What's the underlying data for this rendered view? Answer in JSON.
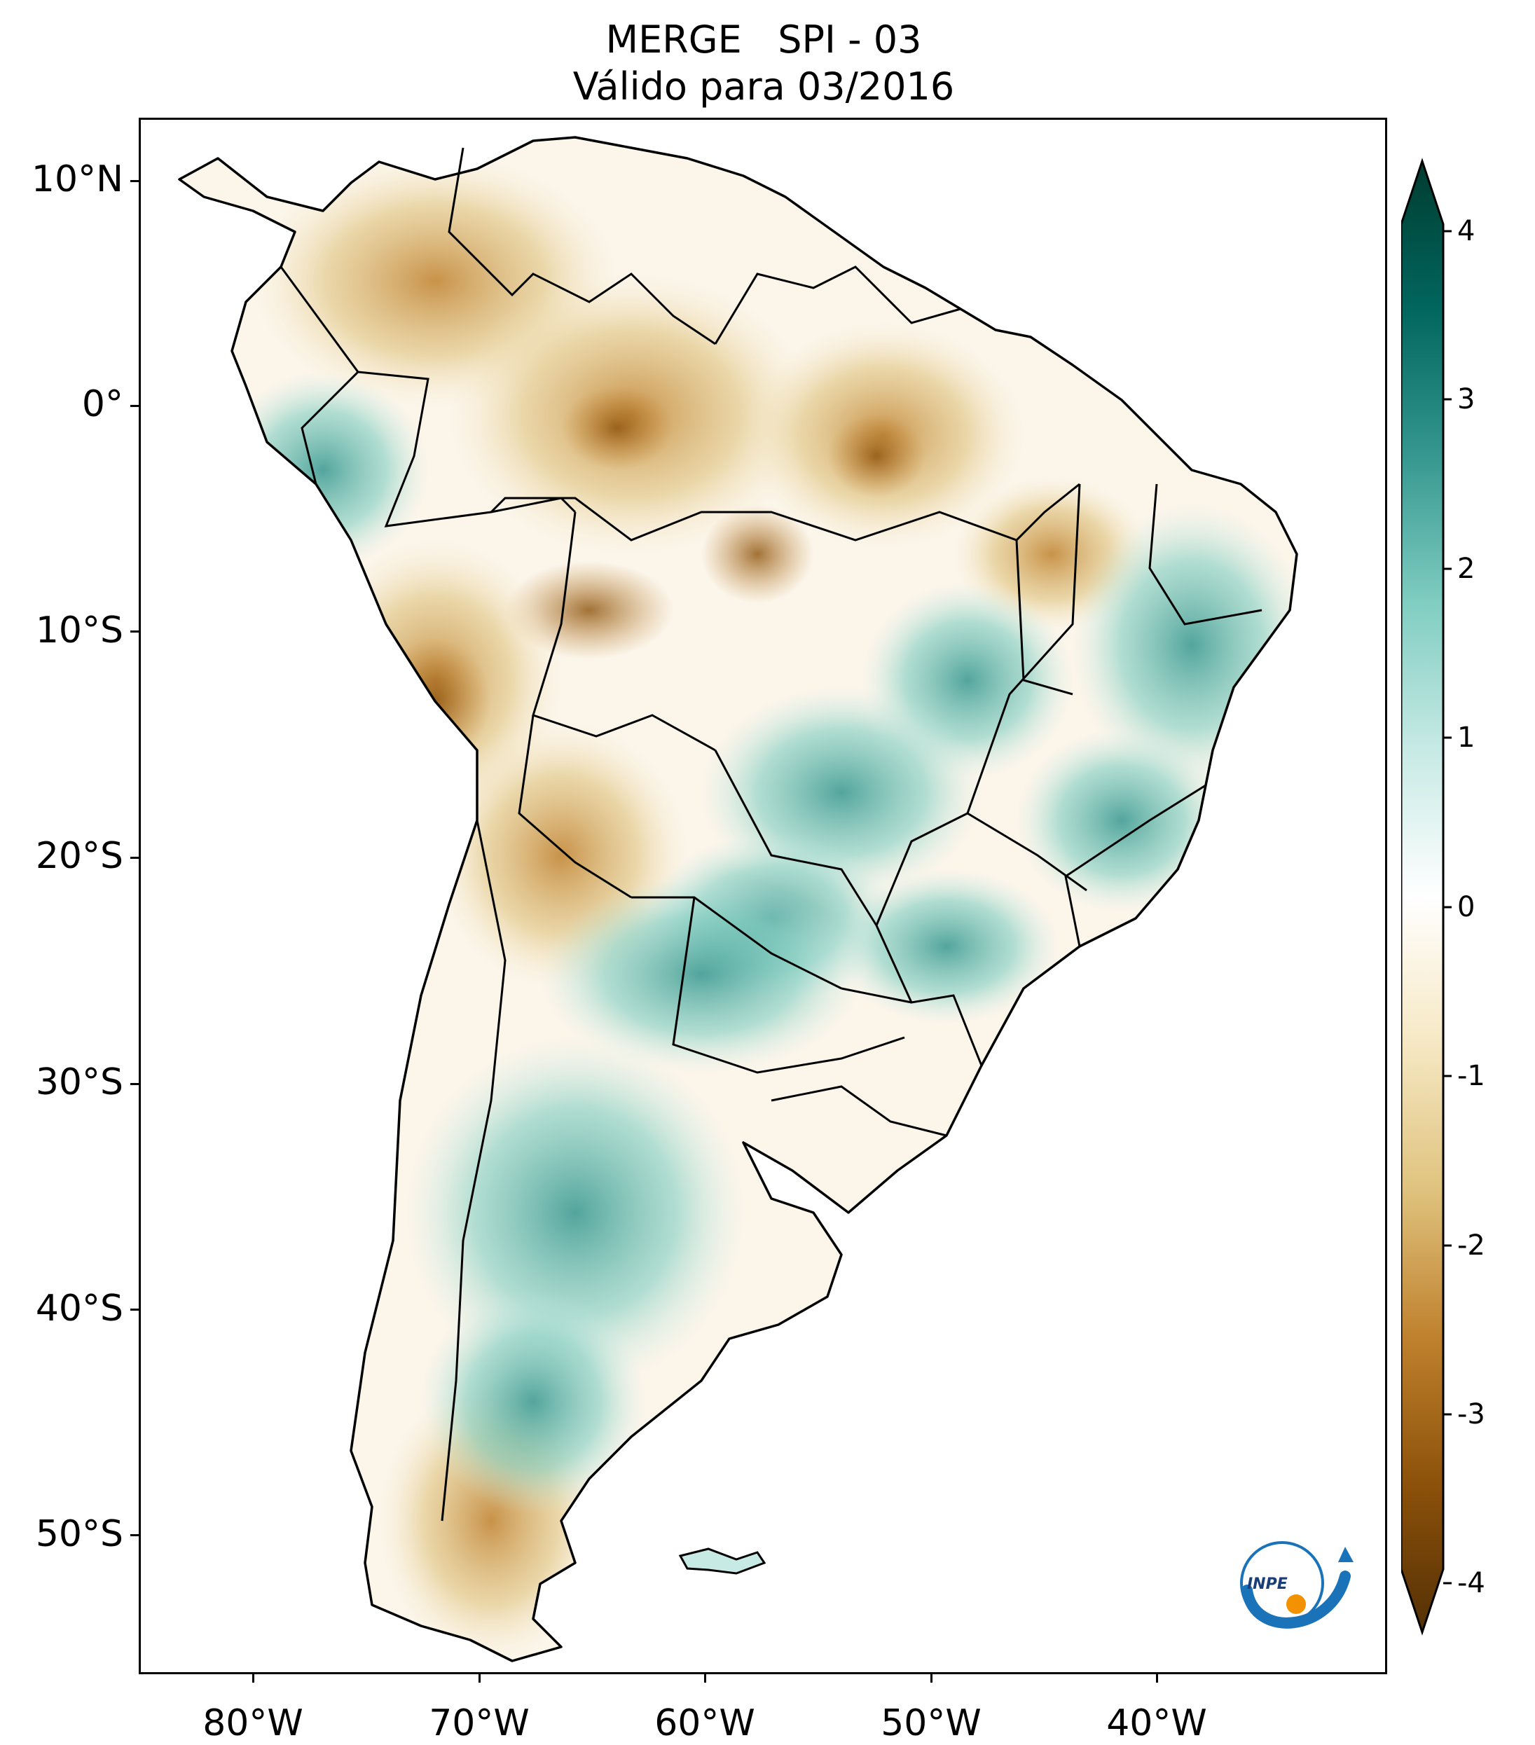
{
  "title": {
    "line1": "MERGE   SPI - 03",
    "line2": "Válido para 03/2016"
  },
  "axes": {
    "lat_labels": [
      "10°N",
      "0°",
      "10°S",
      "20°S",
      "30°S",
      "40°S",
      "50°S"
    ],
    "lon_labels": [
      "80°W",
      "70°W",
      "60°W",
      "50°W",
      "40°W"
    ]
  },
  "colorbar": {
    "labels": [
      "4",
      "3",
      "2",
      "1",
      "0",
      "-1",
      "-2",
      "-3",
      "-4"
    ],
    "min": -4,
    "max": 4,
    "extend": "both",
    "colors": {
      "dry_extreme": "#543005",
      "dry_strong": "#8c510a",
      "dry_moderate": "#bf812d",
      "dry_mild": "#dfc27d",
      "dry_light": "#f6e8c3",
      "neutral": "#ffffff",
      "wet_light": "#c7eae5",
      "wet_mild": "#80cdc1",
      "wet_moderate": "#35978f",
      "wet_strong": "#01665e",
      "wet_extreme": "#003c30"
    }
  },
  "logo": {
    "text": "INPE",
    "colors": {
      "blue": "#1a73b8",
      "orange": "#f39200"
    }
  }
}
